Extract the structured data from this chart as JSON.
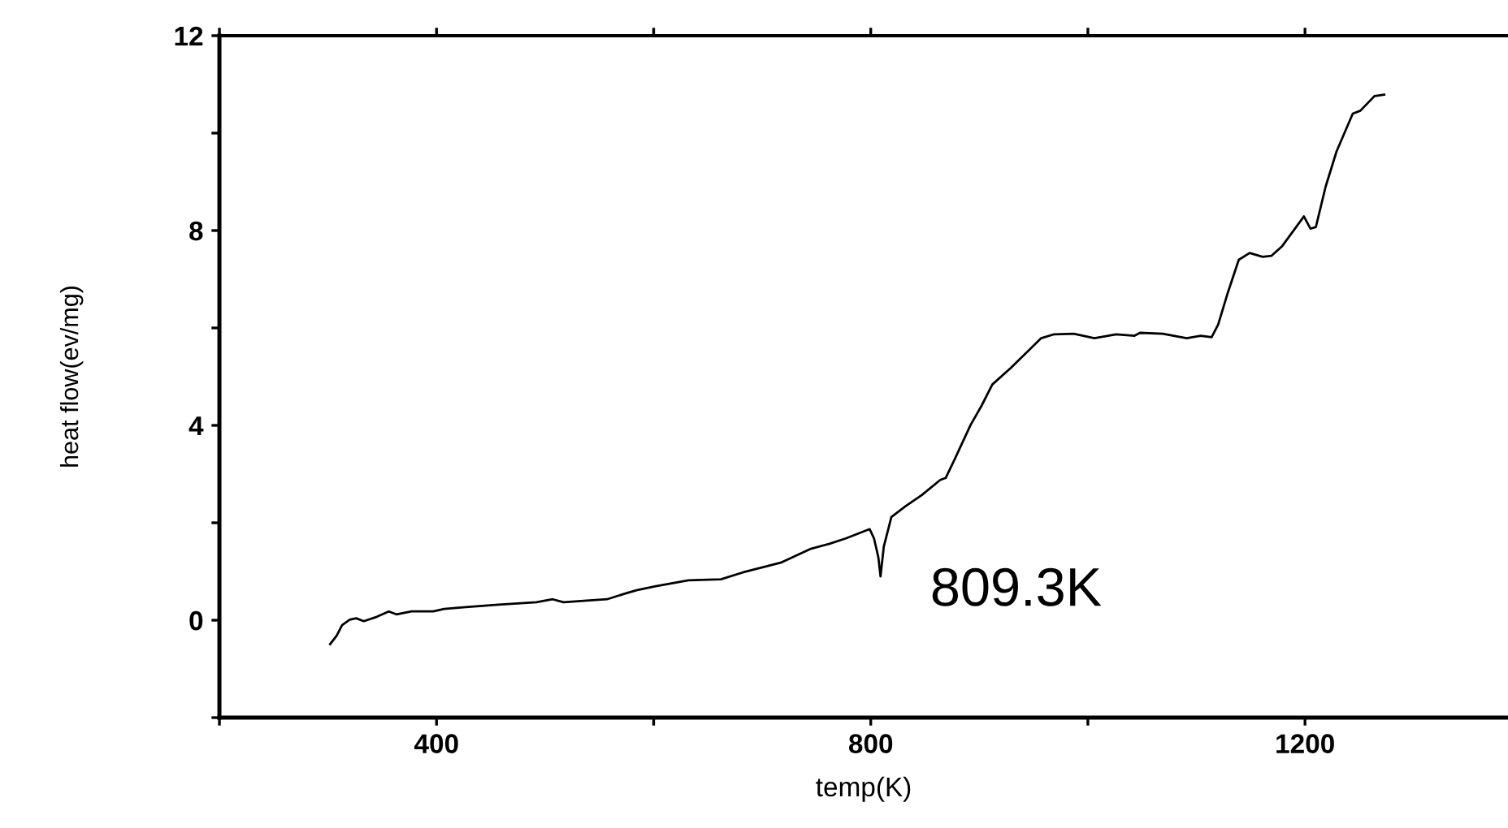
{
  "chart_data": {
    "type": "line",
    "xlabel": "temp(K)",
    "ylabel": "heat flow(ev/mg)",
    "xlim": [
      200,
      1387
    ],
    "ylim": [
      -2,
      12
    ],
    "xticks": [
      {
        "value": 200,
        "label": null
      },
      400,
      {
        "value": 600,
        "label": null
      },
      800,
      {
        "value": 1000,
        "label": null
      },
      1200
    ],
    "yticks": [
      {
        "value": -2,
        "label": null
      },
      0,
      {
        "value": 2,
        "label": null
      },
      4,
      {
        "value": 6,
        "label": null
      },
      8,
      {
        "value": 10,
        "label": null
      },
      12
    ],
    "grid": false,
    "marker": "none",
    "line_style": "solid",
    "annotations": [
      {
        "text": "809.3K",
        "x": 809,
        "y": 0.9
      }
    ],
    "series": [
      {
        "color": "#000000",
        "x": [
          302,
          308,
          313,
          320,
          326,
          333,
          345,
          356,
          363,
          377,
          397,
          407,
          427,
          457,
          492,
          507,
          517,
          557,
          577,
          585,
          602,
          632,
          662,
          682,
          717,
          744,
          762,
          777,
          799,
          803,
          807,
          809,
          812,
          819,
          832,
          847,
          864,
          869,
          877,
          892,
          902,
          912,
          929,
          957,
          969,
          987,
          1006,
          1026,
          1043,
          1048,
          1069,
          1091,
          1104,
          1114,
          1120,
          1129,
          1139,
          1149,
          1161,
          1169,
          1179,
          1199,
          1205,
          1210,
          1219,
          1229,
          1244,
          1251,
          1264,
          1273
        ],
        "values": [
          -0.49,
          -0.32,
          -0.1,
          0.01,
          0.04,
          -0.02,
          0.07,
          0.18,
          0.12,
          0.18,
          0.18,
          0.23,
          0.27,
          0.32,
          0.37,
          0.43,
          0.37,
          0.43,
          0.57,
          0.62,
          0.7,
          0.82,
          0.84,
          0.98,
          1.18,
          1.46,
          1.57,
          1.68,
          1.87,
          1.68,
          1.29,
          0.9,
          1.51,
          2.12,
          2.34,
          2.57,
          2.88,
          2.92,
          3.29,
          4.01,
          4.4,
          4.84,
          5.18,
          5.79,
          5.87,
          5.88,
          5.79,
          5.87,
          5.84,
          5.9,
          5.88,
          5.79,
          5.84,
          5.81,
          6.07,
          6.73,
          7.4,
          7.54,
          7.46,
          7.48,
          7.68,
          8.29,
          8.04,
          8.07,
          8.9,
          9.62,
          10.4,
          10.46,
          10.76,
          10.79
        ]
      }
    ]
  }
}
